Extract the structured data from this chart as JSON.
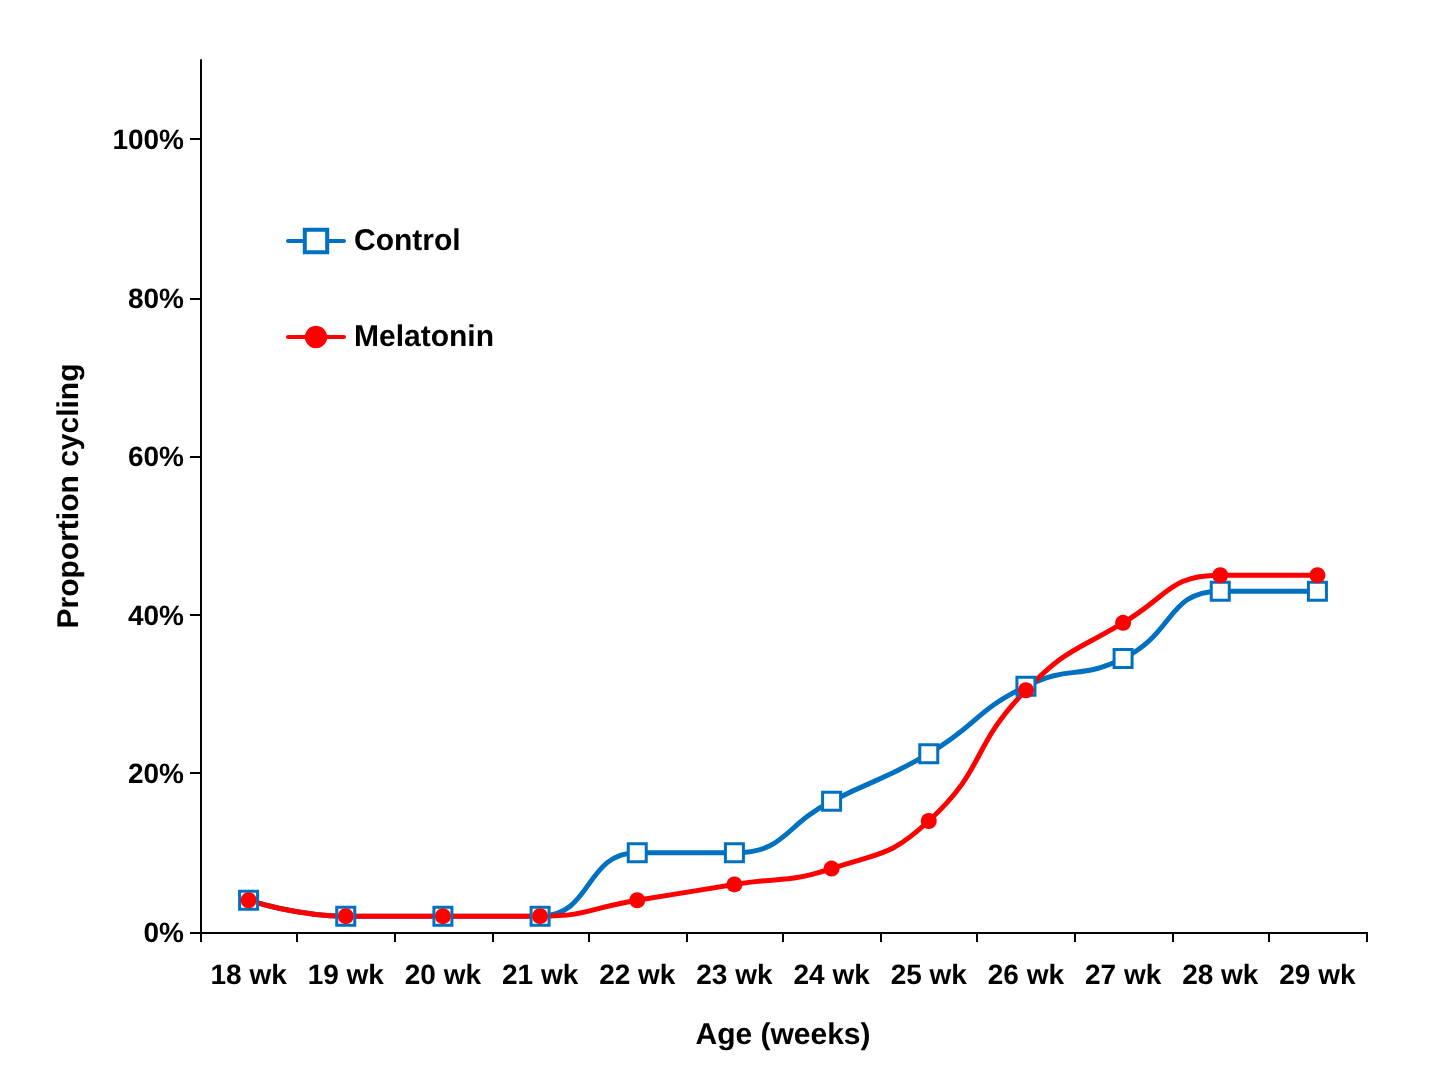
{
  "chart_data": {
    "type": "line",
    "xlabel": "Age (weeks)",
    "ylabel": "Proportion cycling",
    "categories": [
      "18 wk",
      "19 wk",
      "20 wk",
      "21 wk",
      "22 wk",
      "23 wk",
      "24 wk",
      "25 wk",
      "26 wk",
      "27 wk",
      "28 wk",
      "29 wk"
    ],
    "series": [
      {
        "name": "Control",
        "color": "#0070c0",
        "marker": "square",
        "values": [
          4,
          2,
          2,
          2,
          10,
          10,
          16.5,
          22.5,
          31,
          34.5,
          43,
          43
        ]
      },
      {
        "name": "Melatonin",
        "color": "#ff0000",
        "marker": "circle",
        "values": [
          4,
          2,
          2,
          2,
          4,
          6,
          8,
          14,
          30.5,
          39,
          45,
          45
        ]
      }
    ],
    "ylim": [
      0,
      110
    ],
    "yticks": [
      {
        "value": 0,
        "label": "0%"
      },
      {
        "value": 20,
        "label": "20%"
      },
      {
        "value": 40,
        "label": "40%"
      },
      {
        "value": 60,
        "label": "60%"
      },
      {
        "value": 80,
        "label": "80%"
      },
      {
        "value": 100,
        "label": "100%"
      }
    ],
    "grid": false,
    "legend": "top left",
    "line_style": "solid"
  }
}
